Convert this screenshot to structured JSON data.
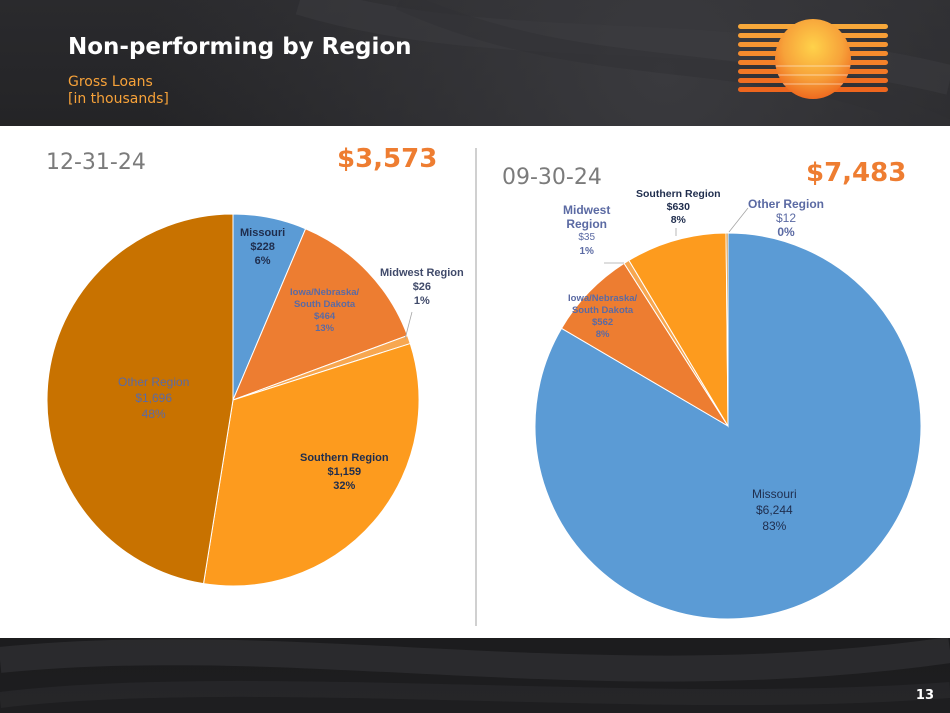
{
  "slide": {
    "title": "Non-performing by Region",
    "subtitle_line1": "Gross Loans",
    "subtitle_line2": "[in thousands]",
    "page_number": "13"
  },
  "colors": {
    "blue": "#5b9bd5",
    "orange": "#ed7d31",
    "light_orange": "#f7a750",
    "bright_orange": "#fd9b1e",
    "dark_orange": "#c87200",
    "accent": "#f7a239"
  },
  "chart_data": [
    {
      "type": "pie",
      "title": "12-31-24",
      "total": "$3,573",
      "slices": [
        {
          "name": "Missouri",
          "value": 228,
          "value_label": "$228",
          "pct": "6%"
        },
        {
          "name": "Iowa/Nebraska/ South Dakota",
          "value": 464,
          "value_label": "$464",
          "pct": "13%"
        },
        {
          "name": "Midwest Region",
          "value": 26,
          "value_label": "$26",
          "pct": "1%"
        },
        {
          "name": "Southern Region",
          "value": 1159,
          "value_label": "$1,159",
          "pct": "32%"
        },
        {
          "name": "Other Region",
          "value": 1696,
          "value_label": "$1,696",
          "pct": "48%"
        }
      ]
    },
    {
      "type": "pie",
      "title": "09-30-24",
      "total": "$7,483",
      "slices": [
        {
          "name": "Missouri",
          "value": 6244,
          "value_label": "$6,244",
          "pct": "83%"
        },
        {
          "name": "Iowa/Nebraska/ South Dakota",
          "value": 562,
          "value_label": "$562",
          "pct": "8%"
        },
        {
          "name": "Midwest Region",
          "value": 35,
          "value_label": "$35",
          "pct": "1%"
        },
        {
          "name": "Southern Region",
          "value": 630,
          "value_label": "$630",
          "pct": "8%"
        },
        {
          "name": "Other Region",
          "value": 12,
          "value_label": "$12",
          "pct": "0%"
        }
      ]
    }
  ],
  "labels": {
    "left": {
      "missouri": [
        "Missouri",
        "$228",
        "6%"
      ],
      "iowa": [
        "Iowa/Nebraska/",
        "South Dakota",
        "$464",
        "13%"
      ],
      "midwest": [
        "Midwest Region",
        "$26",
        "1%"
      ],
      "southern": [
        "Southern Region",
        "$1,159",
        "32%"
      ],
      "other": [
        "Other Region",
        "$1,696",
        "48%"
      ]
    },
    "right": {
      "missouri": [
        "Missouri",
        "$6,244",
        "83%"
      ],
      "iowa": [
        "Iowa/Nebraska/",
        "South Dakota",
        "$562",
        "8%"
      ],
      "midwest": [
        "Midwest",
        "Region",
        "$35",
        "1%"
      ],
      "southern": [
        "Southern Region",
        "$630",
        "8%"
      ],
      "other": [
        "Other Region",
        "$12",
        "0%"
      ]
    }
  }
}
